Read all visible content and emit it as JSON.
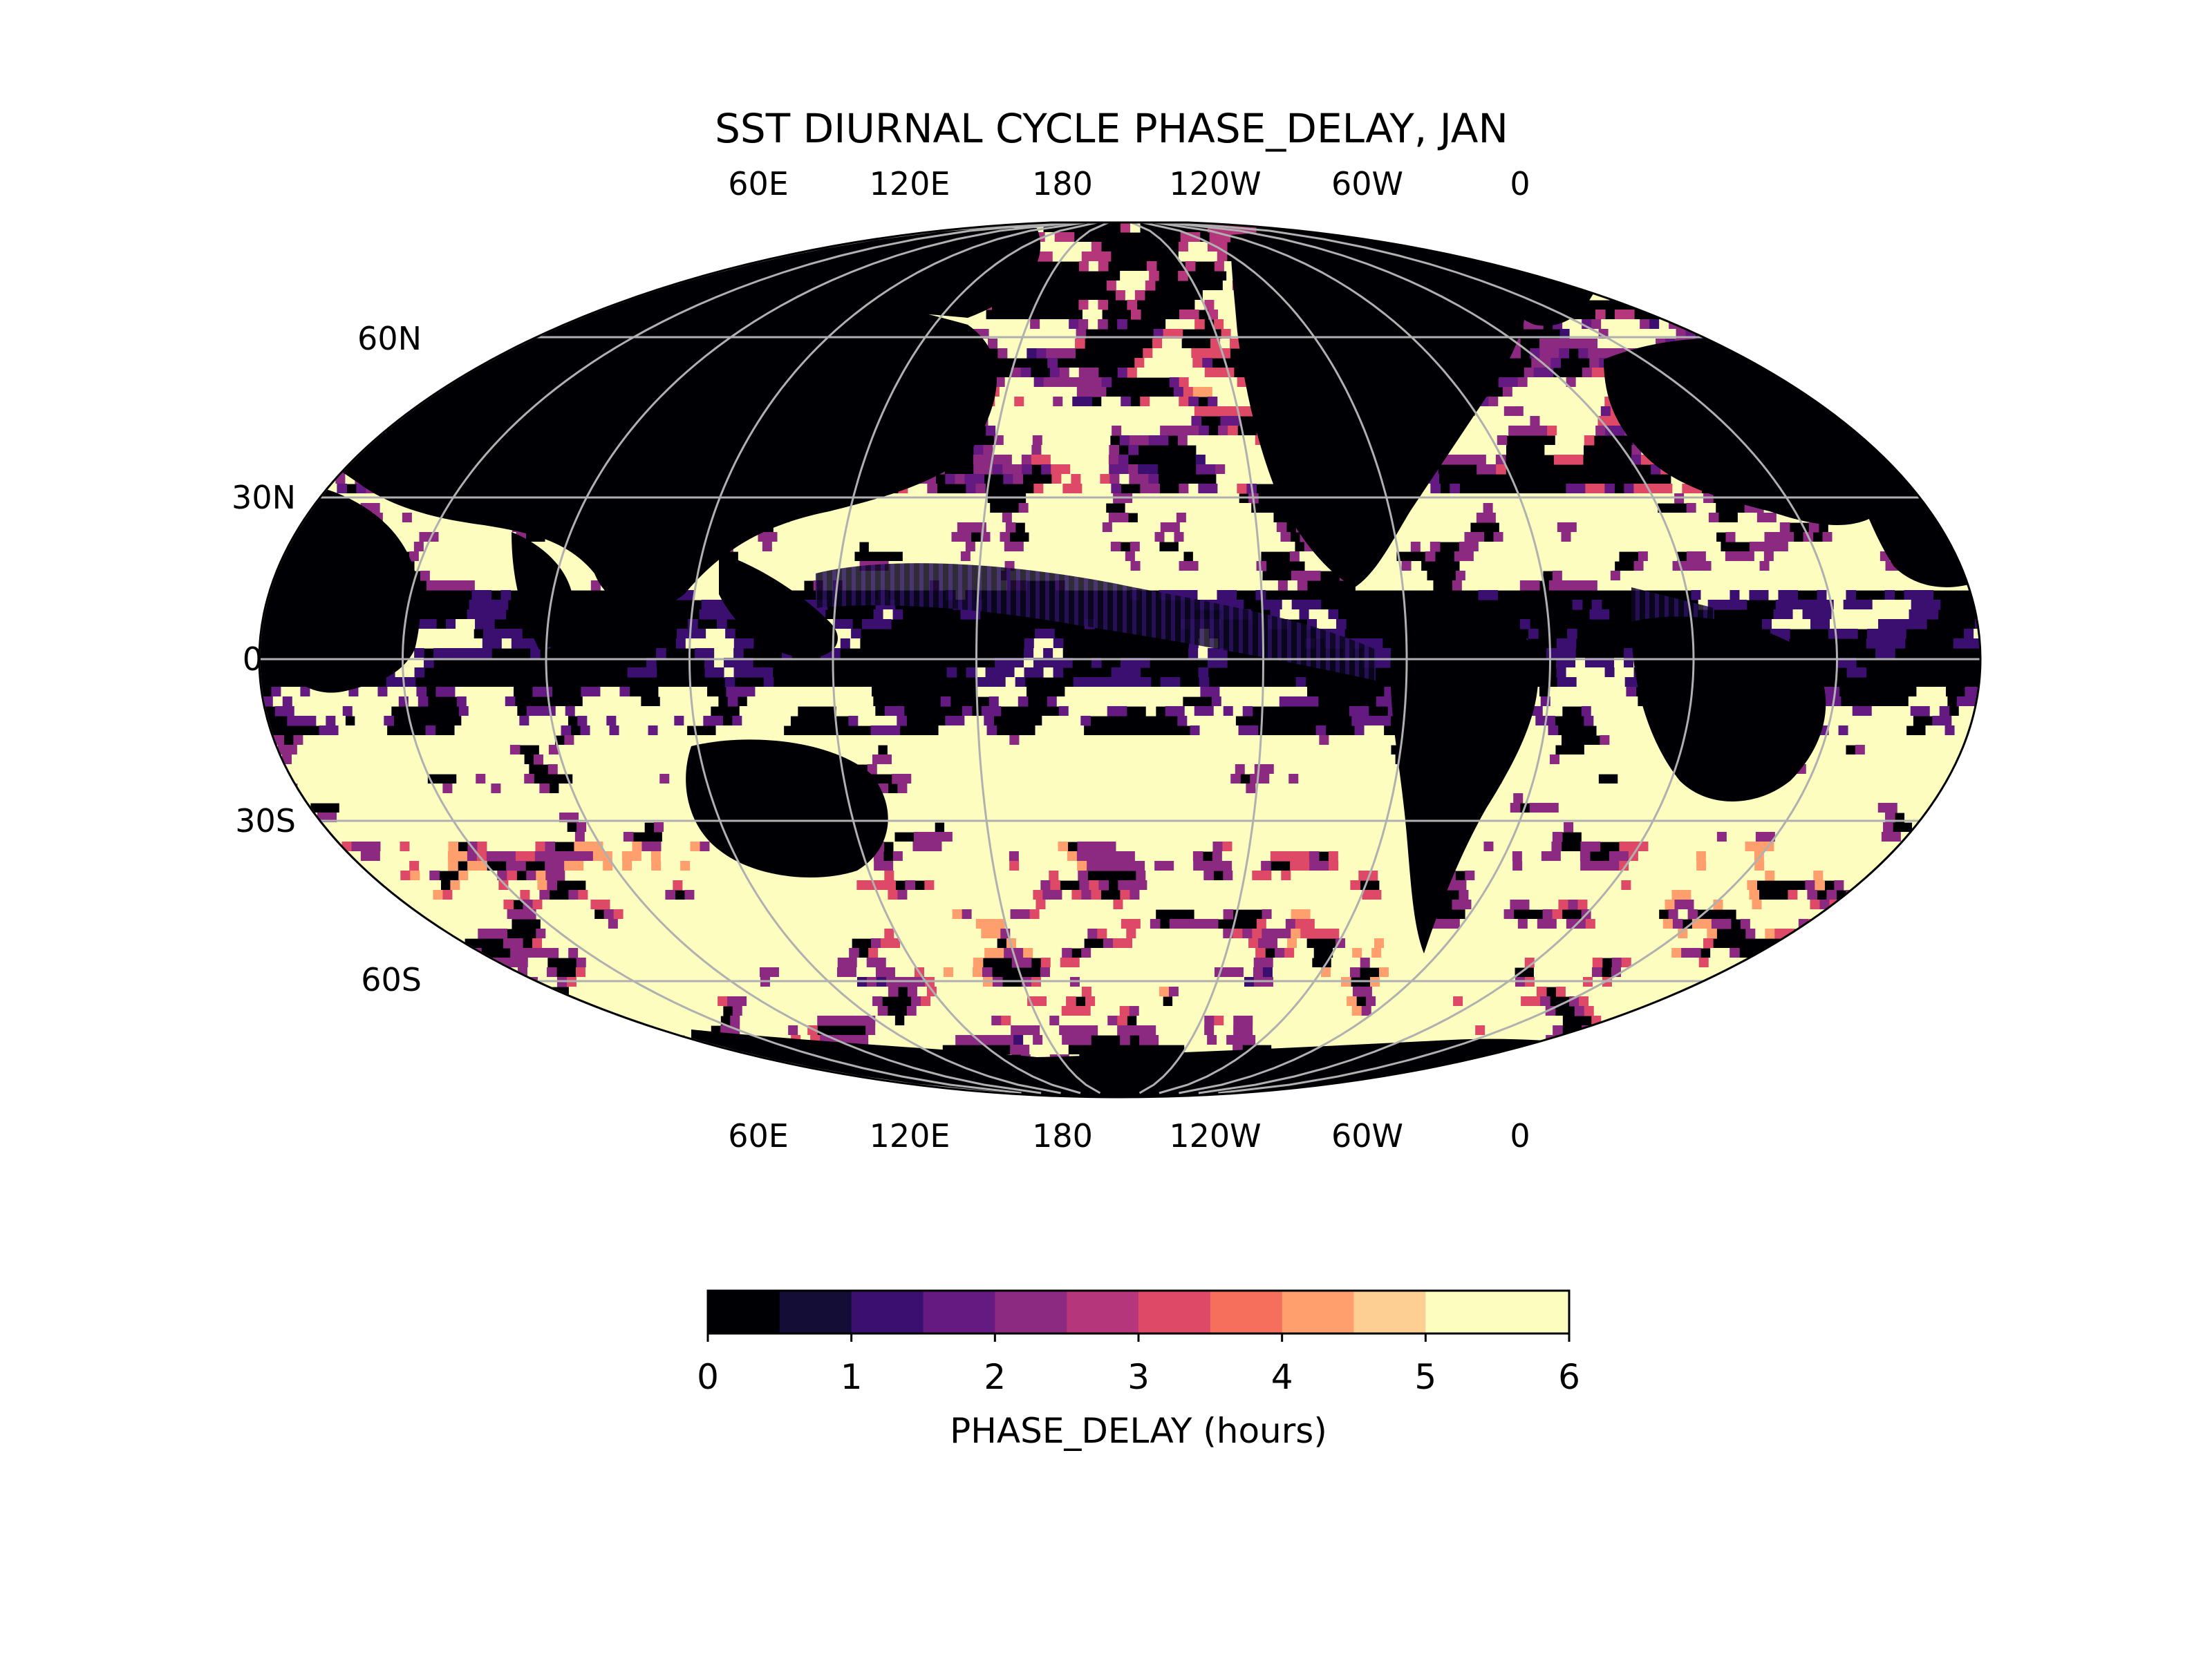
{
  "figure": {
    "title": "SST DIURNAL CYCLE PHASE_DELAY, JAN",
    "projection": "Robinson-like, central longitude 150E",
    "lon_labels_top": [
      "60E",
      "120E",
      "180",
      "120W",
      "60W",
      "0"
    ],
    "lon_labels_bottom": [
      "60E",
      "120E",
      "180",
      "120W",
      "60W",
      "0"
    ],
    "lat_labels": [
      "60N",
      "30N",
      "0",
      "30S",
      "60S"
    ]
  },
  "colorbar": {
    "label": "PHASE_DELAY (hours)",
    "ticks": [
      "0",
      "1",
      "2",
      "3",
      "4",
      "5",
      "6"
    ],
    "min": 0,
    "max": 6,
    "step": 0.5,
    "colors": [
      "#000004",
      "#140e36",
      "#3b0f70",
      "#641a80",
      "#8c2981",
      "#b5367a",
      "#de4968",
      "#f66e5c",
      "#fe9f6d",
      "#fecf92",
      "#fcfdbf",
      "#fcfdbf"
    ]
  },
  "chart_data": {
    "type": "heatmap",
    "title": "SST DIURNAL CYCLE PHASE_DELAY, JAN",
    "variable": "PHASE_DELAY",
    "units": "hours",
    "range": [
      0,
      6
    ],
    "levels": [
      0,
      0.5,
      1,
      1.5,
      2,
      2.5,
      3,
      3.5,
      4,
      4.5,
      5,
      5.5,
      6
    ],
    "lat_ticks": [
      60,
      30,
      0,
      -30,
      -60
    ],
    "lon_ticks": [
      60,
      120,
      180,
      -120,
      -60,
      0
    ],
    "summary": [
      {
        "region": "Land and equatorial Pacific/Atlantic",
        "phase_delay_hours": 0
      },
      {
        "region": "Subtropical bands near 20N and 15-35S",
        "phase_delay_hours": 6
      },
      {
        "region": "Southern Ocean 35-70S",
        "phase_delay_hours": "mixed 0-6, mostly 6"
      },
      {
        "region": "North Pacific / North Atlantic 30-60N",
        "phase_delay_hours": "mixed 1-6"
      }
    ]
  }
}
